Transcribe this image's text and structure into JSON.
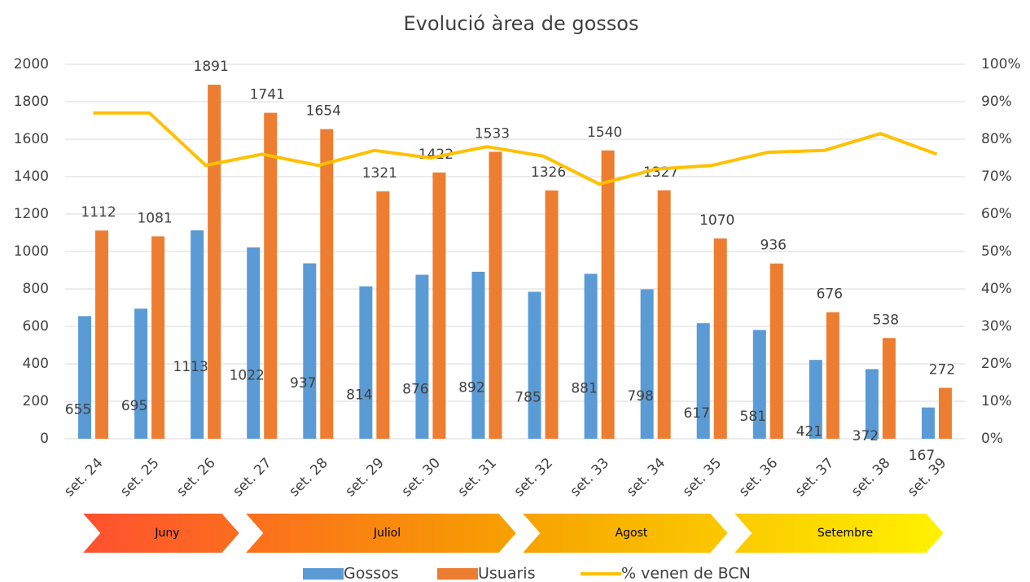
{
  "chart_data": {
    "type": "bar-line",
    "title": "Evolució àrea de gossos",
    "categories": [
      "set. 24",
      "set. 25",
      "set. 26",
      "set. 27",
      "set. 28",
      "set. 29",
      "set. 30",
      "set. 31",
      "set. 32",
      "set. 33",
      "set. 34",
      "set. 35",
      "set. 36",
      "set. 37",
      "set. 38",
      "set. 39"
    ],
    "series": [
      {
        "name": "Gossos",
        "color": "#5b9bd5",
        "kind": "bar",
        "values": [
          655,
          695,
          1113,
          1022,
          937,
          814,
          876,
          892,
          785,
          881,
          798,
          617,
          581,
          421,
          372,
          167
        ]
      },
      {
        "name": "Usuaris",
        "color": "#ed7d31",
        "kind": "bar",
        "values": [
          1112,
          1081,
          1891,
          1741,
          1654,
          1321,
          1422,
          1533,
          1326,
          1540,
          1327,
          1070,
          936,
          676,
          538,
          272
        ]
      },
      {
        "name": "% venen de BCN",
        "color": "#ffc000",
        "kind": "line",
        "axis": "y2",
        "values": [
          87,
          87,
          73,
          76,
          73,
          77,
          75,
          78,
          75.5,
          68,
          72,
          73,
          76.5,
          77,
          81.5,
          76
        ]
      }
    ],
    "ylim": [
      0,
      2000
    ],
    "yticks": [
      0,
      200,
      400,
      600,
      800,
      1000,
      1200,
      1400,
      1600,
      1800,
      2000
    ],
    "y2lim": [
      0,
      100
    ],
    "y2ticks": [
      {
        "value": 0,
        "label": "0%"
      },
      {
        "value": 10,
        "label": "10%"
      },
      {
        "value": 20,
        "label": "20%"
      },
      {
        "value": 30,
        "label": "30%"
      },
      {
        "value": 40,
        "label": "40%"
      },
      {
        "value": 50,
        "label": "50%"
      },
      {
        "value": 60,
        "label": "60%"
      },
      {
        "value": 70,
        "label": "70%"
      },
      {
        "value": 80,
        "label": "80%"
      },
      {
        "value": 90,
        "label": "90%"
      },
      {
        "value": 100,
        "label": "100%"
      }
    ],
    "grid": true,
    "legend": "bottom",
    "periods": [
      "Juny",
      "Juliol",
      "Agost",
      "Setembre"
    ]
  }
}
